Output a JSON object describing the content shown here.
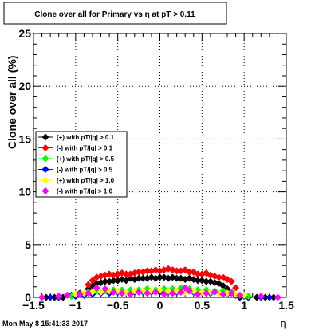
{
  "title": "Clone  over all for Primary vs   η at pT > 0.11",
  "timestamp": "Mon May  8 15:41:33 2017",
  "colors": {
    "frame": "#000000",
    "grid": "#000000"
  },
  "chart_data": {
    "type": "scatter",
    "title": "Clone  over all for Primary vs   η at pT > 0.11",
    "xlabel": "η",
    "ylabel": "Clone  over all (%)",
    "xlim": [
      -1.5,
      1.5
    ],
    "ylim": [
      0,
      25
    ],
    "x_ticks": [
      -1.5,
      -1,
      -0.5,
      0,
      0.5,
      1,
      1.5
    ],
    "x_tick_labels": [
      "−1.5",
      "−1",
      "−0.5",
      "0",
      "0.5",
      "1",
      "1.5"
    ],
    "y_ticks": [
      0,
      5,
      10,
      15,
      20,
      25
    ],
    "y_tick_labels": [
      "0",
      "5",
      "10",
      "15",
      "20",
      "25"
    ],
    "grid": true,
    "legend_position": "left",
    "series": [
      {
        "name": "(+) with pT/|q| > 0.1",
        "color": "#000000",
        "x": [
          -1.35,
          -1.25,
          -1.15,
          -1.05,
          -0.95,
          -0.85,
          -0.8,
          -0.75,
          -0.7,
          -0.65,
          -0.6,
          -0.55,
          -0.5,
          -0.45,
          -0.4,
          -0.35,
          -0.3,
          -0.25,
          -0.2,
          -0.15,
          -0.1,
          -0.05,
          0,
          0.05,
          0.1,
          0.15,
          0.2,
          0.25,
          0.3,
          0.35,
          0.4,
          0.45,
          0.5,
          0.55,
          0.6,
          0.65,
          0.7,
          0.75,
          0.8,
          0.85,
          0.9,
          0.95,
          1.05,
          1.15,
          1.25,
          1.35
        ],
        "y": [
          0,
          0,
          0,
          0.2,
          0.4,
          0.8,
          1.1,
          1.3,
          1.4,
          1.5,
          1.5,
          1.6,
          1.6,
          1.7,
          1.6,
          1.8,
          1.7,
          1.8,
          1.8,
          1.8,
          1.9,
          1.8,
          1.9,
          1.9,
          1.8,
          1.9,
          1.8,
          1.8,
          1.7,
          1.8,
          1.7,
          1.6,
          1.6,
          1.5,
          1.5,
          1.4,
          1.3,
          1.1,
          0.8,
          0.5,
          0.2,
          0,
          0,
          0,
          0,
          0
        ]
      },
      {
        "name": "(-) with pT/|q| > 0.1",
        "color": "#ff0000",
        "x": [
          -0.85,
          -0.8,
          -0.75,
          -0.7,
          -0.65,
          -0.6,
          -0.55,
          -0.5,
          -0.45,
          -0.4,
          -0.35,
          -0.3,
          -0.25,
          -0.2,
          -0.15,
          -0.1,
          -0.05,
          0,
          0.05,
          0.1,
          0.15,
          0.2,
          0.25,
          0.3,
          0.35,
          0.4,
          0.45,
          0.5,
          0.55,
          0.6,
          0.65,
          0.7,
          0.75,
          0.8,
          0.85,
          0.9
        ],
        "y": [
          1.2,
          1.6,
          1.9,
          2.0,
          2.1,
          2.2,
          2.1,
          2.2,
          2.3,
          2.2,
          2.2,
          2.3,
          2.4,
          2.4,
          2.5,
          2.5,
          2.6,
          2.5,
          2.6,
          2.7,
          2.6,
          2.5,
          2.5,
          2.6,
          2.4,
          2.4,
          2.2,
          2.2,
          2.3,
          2.1,
          2.0,
          1.9,
          1.9,
          1.7,
          1.5,
          0.9
        ]
      },
      {
        "name": "(+) with pT/|q| > 0.5",
        "color": "#00ff00",
        "x": [
          -1.05,
          -0.95,
          -0.85,
          -0.75,
          -0.65,
          -0.55,
          -0.45,
          -0.35,
          -0.25,
          -0.15,
          -0.05,
          0.05,
          0.15,
          0.25,
          0.35,
          0.45,
          0.55,
          0.65,
          0.75,
          0.85,
          0.95,
          1.05
        ],
        "y": [
          0.1,
          0.3,
          0.5,
          0.6,
          0.6,
          0.7,
          0.7,
          0.7,
          0.7,
          0.8,
          0.7,
          0.8,
          0.8,
          0.9,
          0.8,
          0.7,
          0.7,
          0.6,
          0.6,
          0.5,
          0.2,
          0.1
        ]
      },
      {
        "name": "(-) with pT/|q| > 0.5",
        "color": "#0000ff",
        "x": [
          -1.3,
          -1.2,
          -1.0,
          -0.9,
          -0.8,
          -0.7,
          -0.6,
          -0.5,
          -0.4,
          -0.3,
          -0.2,
          -0.1,
          0,
          0.1,
          0.2,
          0.3,
          0.4,
          0.5,
          0.6,
          0.7,
          0.8,
          0.9,
          1.0,
          1.2,
          1.3
        ],
        "y": [
          0,
          0,
          0.1,
          0.2,
          0.3,
          0.4,
          0.4,
          0.5,
          0.5,
          0.5,
          0.5,
          0.5,
          0.5,
          0.5,
          0.5,
          0.5,
          0.5,
          0.5,
          0.4,
          0.4,
          0.3,
          0.2,
          0.1,
          0,
          0
        ]
      },
      {
        "name": "(+) with pT/|q| > 1.0",
        "color": "#ffff00",
        "x": [
          -1.0,
          -0.9,
          -0.8,
          -0.7,
          -0.6,
          -0.5,
          -0.4,
          -0.3,
          -0.2,
          -0.1,
          0,
          0.1,
          0.2,
          0.3,
          0.4,
          0.5,
          0.6,
          0.7,
          0.8,
          0.9,
          1.0
        ],
        "y": [
          0.3,
          0.4,
          0.5,
          0.5,
          0.6,
          0.6,
          0.5,
          0.6,
          0.6,
          0.6,
          0.7,
          0.6,
          0.6,
          0.5,
          0.6,
          0.5,
          0.5,
          0.4,
          0.4,
          0.3,
          0.2
        ]
      },
      {
        "name": "(-) with pT/|q| > 1.0",
        "color": "#ff00ff",
        "x": [
          -1.4,
          -1.2,
          -1.1,
          -0.95,
          -0.85,
          -0.75,
          -0.65,
          -0.55,
          -0.45,
          -0.35,
          -0.25,
          -0.15,
          -0.05,
          0.05,
          0.15,
          0.25,
          0.3,
          0.35,
          0.45,
          0.55,
          0.65,
          0.75,
          0.85,
          0.95,
          1.2,
          1.4
        ],
        "y": [
          0,
          0.1,
          0.2,
          0.3,
          0.4,
          0.9,
          0.8,
          0.5,
          0.4,
          0.3,
          0.5,
          0.4,
          0.5,
          0.3,
          0.4,
          0.5,
          0.9,
          0.6,
          0.3,
          0.4,
          0.5,
          0.3,
          0.4,
          0.2,
          0.1,
          0
        ]
      }
    ]
  }
}
